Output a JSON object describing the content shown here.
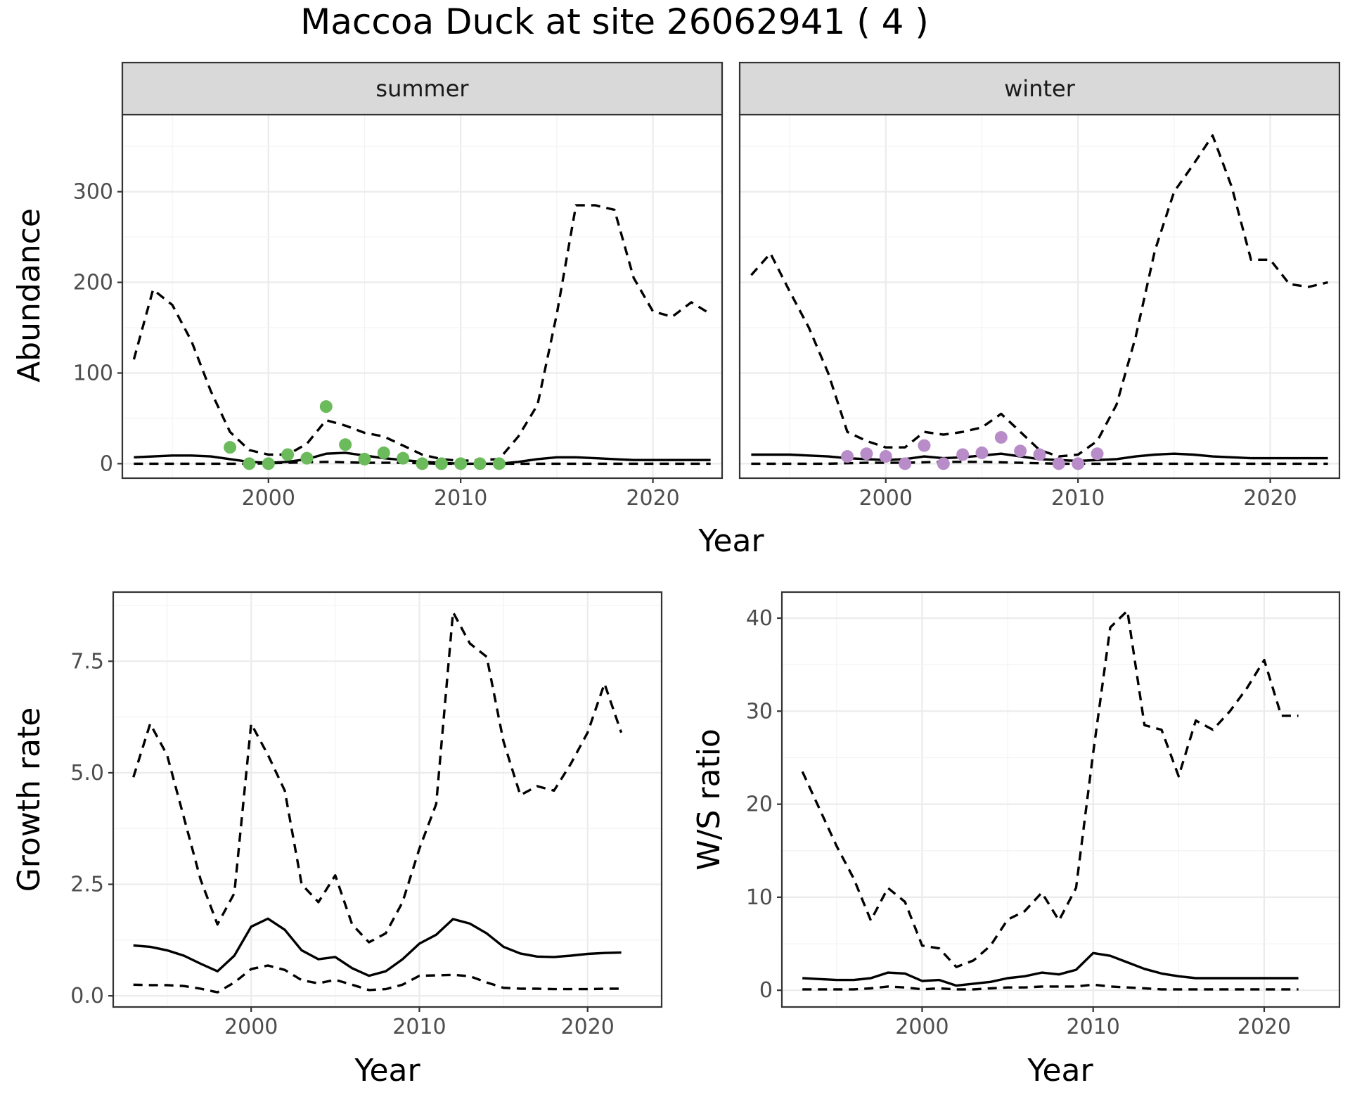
{
  "title": "Maccoa Duck at site 26062941 ( 4 )",
  "colors": {
    "summer_points": "#6BBB5C",
    "winter_points": "#B88CC8",
    "lines": "#000000",
    "strip": "#D9D9D9",
    "grid": "#EBEBEB"
  },
  "chart_data": [
    {
      "type": "line",
      "panel": "summer",
      "strip_label": "summer",
      "xlabel": "Year",
      "ylabel": "Abundance",
      "xlim": [
        1992.4,
        2023.6
      ],
      "ylim": [
        -16,
        385
      ],
      "x_ticks": [
        2000,
        2010,
        2020
      ],
      "y_ticks": [
        0,
        100,
        200,
        300
      ],
      "series": [
        {
          "style": "solid",
          "x": [
            1993,
            1994,
            1995,
            1996,
            1997,
            1998,
            1999,
            2000,
            2001,
            2002,
            2003,
            2004,
            2005,
            2006,
            2007,
            2008,
            2009,
            2010,
            2011,
            2012,
            2013,
            2014,
            2015,
            2016,
            2017,
            2018,
            2019,
            2020,
            2021,
            2022,
            2023
          ],
          "values": [
            7,
            8,
            9,
            9,
            8,
            5,
            2,
            1,
            2,
            5,
            11,
            12,
            9,
            6,
            4,
            2,
            1,
            0,
            0,
            0,
            2,
            5,
            7,
            7,
            6,
            5,
            4,
            4,
            4,
            4,
            4
          ]
        },
        {
          "style": "dashed",
          "x": [
            1993,
            1994,
            1995,
            1996,
            1997,
            1998,
            1999,
            2000,
            2001,
            2002,
            2003,
            2004,
            2005,
            2006,
            2007,
            2008,
            2009,
            2010,
            2011,
            2012,
            2013,
            2014,
            2015,
            2016,
            2017,
            2018,
            2019,
            2020,
            2021,
            2022,
            2023
          ],
          "values": [
            115,
            192,
            175,
            135,
            80,
            35,
            15,
            10,
            10,
            22,
            48,
            42,
            34,
            30,
            20,
            10,
            5,
            3,
            4,
            5,
            30,
            65,
            165,
            285,
            285,
            280,
            205,
            168,
            162,
            178,
            165
          ]
        },
        {
          "style": "dashed",
          "x": [
            1993,
            1995,
            1997,
            1999,
            2001,
            2003,
            2005,
            2007,
            2009,
            2011,
            2013,
            2015,
            2017,
            2019,
            2021,
            2023
          ],
          "values": [
            0,
            0,
            0,
            0,
            1,
            2,
            1,
            1,
            0,
            0,
            0,
            0,
            0,
            0,
            0,
            0
          ]
        }
      ],
      "points": {
        "x": [
          1998,
          1999,
          2000,
          2001,
          2002,
          2003,
          2004,
          2005,
          2006,
          2007,
          2008,
          2009,
          2010,
          2011,
          2012
        ],
        "values": [
          18,
          0,
          0,
          10,
          6,
          63,
          21,
          5,
          12,
          6,
          0,
          0,
          0,
          0,
          0
        ]
      }
    },
    {
      "type": "line",
      "panel": "winter",
      "strip_label": "winter",
      "xlabel": "Year",
      "ylabel": "Abundance",
      "xlim": [
        1992.4,
        2023.6
      ],
      "ylim": [
        -16,
        385
      ],
      "x_ticks": [
        2000,
        2010,
        2020
      ],
      "y_ticks": [
        0,
        100,
        200,
        300
      ],
      "series": [
        {
          "style": "solid",
          "x": [
            1993,
            1994,
            1995,
            1996,
            1997,
            1998,
            1999,
            2000,
            2001,
            2002,
            2003,
            2004,
            2005,
            2006,
            2007,
            2008,
            2009,
            2010,
            2011,
            2012,
            2013,
            2014,
            2015,
            2016,
            2017,
            2018,
            2019,
            2020,
            2021,
            2022,
            2023
          ],
          "values": [
            10,
            10,
            10,
            9,
            8,
            6,
            5,
            4,
            5,
            8,
            6,
            7,
            9,
            11,
            8,
            5,
            4,
            3,
            4,
            5,
            8,
            10,
            11,
            10,
            8,
            7,
            6,
            6,
            6,
            6,
            6
          ]
        },
        {
          "style": "dashed",
          "x": [
            1993,
            1994,
            1995,
            1996,
            1997,
            1998,
            1999,
            2000,
            2001,
            2002,
            2003,
            2004,
            2005,
            2006,
            2007,
            2008,
            2009,
            2010,
            2011,
            2012,
            2013,
            2014,
            2015,
            2016,
            2017,
            2018,
            2019,
            2020,
            2021,
            2022,
            2023
          ],
          "values": [
            208,
            232,
            190,
            150,
            100,
            35,
            25,
            18,
            18,
            35,
            32,
            35,
            40,
            55,
            35,
            15,
            8,
            10,
            25,
            65,
            140,
            235,
            300,
            330,
            362,
            305,
            225,
            225,
            198,
            195,
            200
          ]
        },
        {
          "style": "dashed",
          "x": [
            1993,
            1995,
            1997,
            1999,
            2001,
            2003,
            2005,
            2007,
            2009,
            2011,
            2013,
            2015,
            2017,
            2019,
            2021,
            2023
          ],
          "values": [
            0,
            0,
            0,
            1,
            1,
            2,
            2,
            1,
            0,
            0,
            0,
            0,
            0,
            0,
            0,
            0
          ]
        }
      ],
      "points": {
        "x": [
          1998,
          1999,
          2000,
          2001,
          2002,
          2003,
          2004,
          2005,
          2006,
          2007,
          2008,
          2009,
          2010,
          2011
        ],
        "values": [
          8,
          11,
          8,
          0,
          20,
          0,
          10,
          12,
          29,
          14,
          10,
          0,
          0,
          11
        ]
      }
    },
    {
      "type": "line",
      "panel": "growth",
      "xlabel": "Year",
      "ylabel": "Growth rate",
      "xlim": [
        1991.8,
        2024.4
      ],
      "ylim": [
        -0.25,
        9.05
      ],
      "x_ticks": [
        2000,
        2010,
        2020
      ],
      "y_ticks": [
        0.0,
        2.5,
        5.0,
        7.5
      ],
      "y_tick_labels": [
        "0.0",
        "2.5",
        "5.0",
        "7.5"
      ],
      "series": [
        {
          "style": "solid",
          "x": [
            1993,
            1994,
            1995,
            1996,
            1997,
            1998,
            1999,
            2000,
            2001,
            2002,
            2003,
            2004,
            2005,
            2006,
            2007,
            2008,
            2009,
            2010,
            2011,
            2012,
            2013,
            2014,
            2015,
            2016,
            2017,
            2018,
            2019,
            2020,
            2021,
            2022
          ],
          "values": [
            1.13,
            1.1,
            1.02,
            0.9,
            0.72,
            0.55,
            0.9,
            1.55,
            1.73,
            1.48,
            1.02,
            0.82,
            0.87,
            0.62,
            0.45,
            0.55,
            0.82,
            1.17,
            1.37,
            1.72,
            1.62,
            1.4,
            1.1,
            0.95,
            0.88,
            0.87,
            0.9,
            0.94,
            0.96,
            0.97
          ]
        },
        {
          "style": "dashed",
          "x": [
            1993,
            1994,
            1995,
            1996,
            1997,
            1998,
            1999,
            2000,
            2001,
            2002,
            2003,
            2004,
            2005,
            2006,
            2007,
            2008,
            2009,
            2010,
            2011,
            2012,
            2013,
            2014,
            2015,
            2016,
            2017,
            2018,
            2019,
            2020,
            2021,
            2022
          ],
          "values": [
            4.9,
            6.1,
            5.4,
            4.0,
            2.6,
            1.6,
            2.3,
            6.1,
            5.4,
            4.6,
            2.5,
            2.1,
            2.7,
            1.6,
            1.2,
            1.4,
            2.1,
            3.3,
            4.3,
            8.6,
            7.9,
            7.6,
            5.7,
            4.5,
            4.7,
            4.6,
            5.2,
            5.9,
            7.0,
            5.9
          ]
        },
        {
          "style": "dashed",
          "x": [
            1993,
            1994,
            1995,
            1996,
            1997,
            1998,
            1999,
            2000,
            2001,
            2002,
            2003,
            2004,
            2005,
            2006,
            2007,
            2008,
            2009,
            2010,
            2011,
            2012,
            2013,
            2014,
            2015,
            2016,
            2017,
            2018,
            2019,
            2020,
            2021,
            2022
          ],
          "values": [
            0.25,
            0.24,
            0.24,
            0.22,
            0.16,
            0.08,
            0.3,
            0.6,
            0.68,
            0.58,
            0.35,
            0.28,
            0.36,
            0.25,
            0.13,
            0.15,
            0.25,
            0.45,
            0.46,
            0.47,
            0.44,
            0.3,
            0.18,
            0.16,
            0.16,
            0.15,
            0.15,
            0.15,
            0.16,
            0.16
          ]
        }
      ]
    },
    {
      "type": "line",
      "panel": "ratio",
      "xlabel": "Year",
      "ylabel": "W/S ratio",
      "xlim": [
        1991.8,
        2024.4
      ],
      "ylim": [
        -1.8,
        42.8
      ],
      "x_ticks": [
        2000,
        2010,
        2020
      ],
      "y_ticks": [
        0,
        10,
        20,
        30,
        40
      ],
      "series": [
        {
          "style": "solid",
          "x": [
            1993,
            1994,
            1995,
            1996,
            1997,
            1998,
            1999,
            2000,
            2001,
            2002,
            2003,
            2004,
            2005,
            2006,
            2007,
            2008,
            2009,
            2010,
            2011,
            2012,
            2013,
            2014,
            2015,
            2016,
            2017,
            2018,
            2019,
            2020,
            2021,
            2022
          ],
          "values": [
            1.3,
            1.2,
            1.1,
            1.1,
            1.3,
            1.9,
            1.8,
            1.0,
            1.1,
            0.5,
            0.7,
            0.9,
            1.3,
            1.5,
            1.9,
            1.7,
            2.2,
            4.0,
            3.7,
            3.0,
            2.3,
            1.8,
            1.5,
            1.3,
            1.3,
            1.3,
            1.3,
            1.3,
            1.3,
            1.3
          ]
        },
        {
          "style": "dashed",
          "x": [
            1993,
            1994,
            1995,
            1996,
            1997,
            1998,
            1999,
            2000,
            2001,
            2002,
            2003,
            2004,
            2005,
            2006,
            2007,
            2008,
            2009,
            2010,
            2011,
            2012,
            2013,
            2014,
            2015,
            2016,
            2017,
            2018,
            2019,
            2020,
            2021,
            2022
          ],
          "values": [
            23.5,
            19.5,
            15.5,
            12.0,
            7.5,
            11.0,
            9.5,
            4.8,
            4.5,
            2.5,
            3.2,
            4.8,
            7.6,
            8.5,
            10.5,
            7.5,
            11.0,
            25.5,
            39.0,
            40.8,
            28.5,
            28.0,
            23.0,
            29.0,
            28.0,
            30.0,
            32.5,
            35.5,
            29.5,
            29.5
          ]
        },
        {
          "style": "dashed",
          "x": [
            1993,
            1994,
            1995,
            1996,
            1997,
            1998,
            1999,
            2000,
            2001,
            2002,
            2003,
            2004,
            2005,
            2006,
            2007,
            2008,
            2009,
            2010,
            2011,
            2012,
            2013,
            2014,
            2015,
            2016,
            2017,
            2018,
            2019,
            2020,
            2021,
            2022
          ],
          "values": [
            0.1,
            0.1,
            0.1,
            0.1,
            0.2,
            0.4,
            0.3,
            0.1,
            0.2,
            0.1,
            0.1,
            0.2,
            0.3,
            0.3,
            0.4,
            0.4,
            0.4,
            0.6,
            0.4,
            0.3,
            0.2,
            0.1,
            0.1,
            0.1,
            0.1,
            0.1,
            0.1,
            0.1,
            0.1,
            0.1
          ]
        }
      ]
    }
  ],
  "shared_xlabel_top": "Year"
}
